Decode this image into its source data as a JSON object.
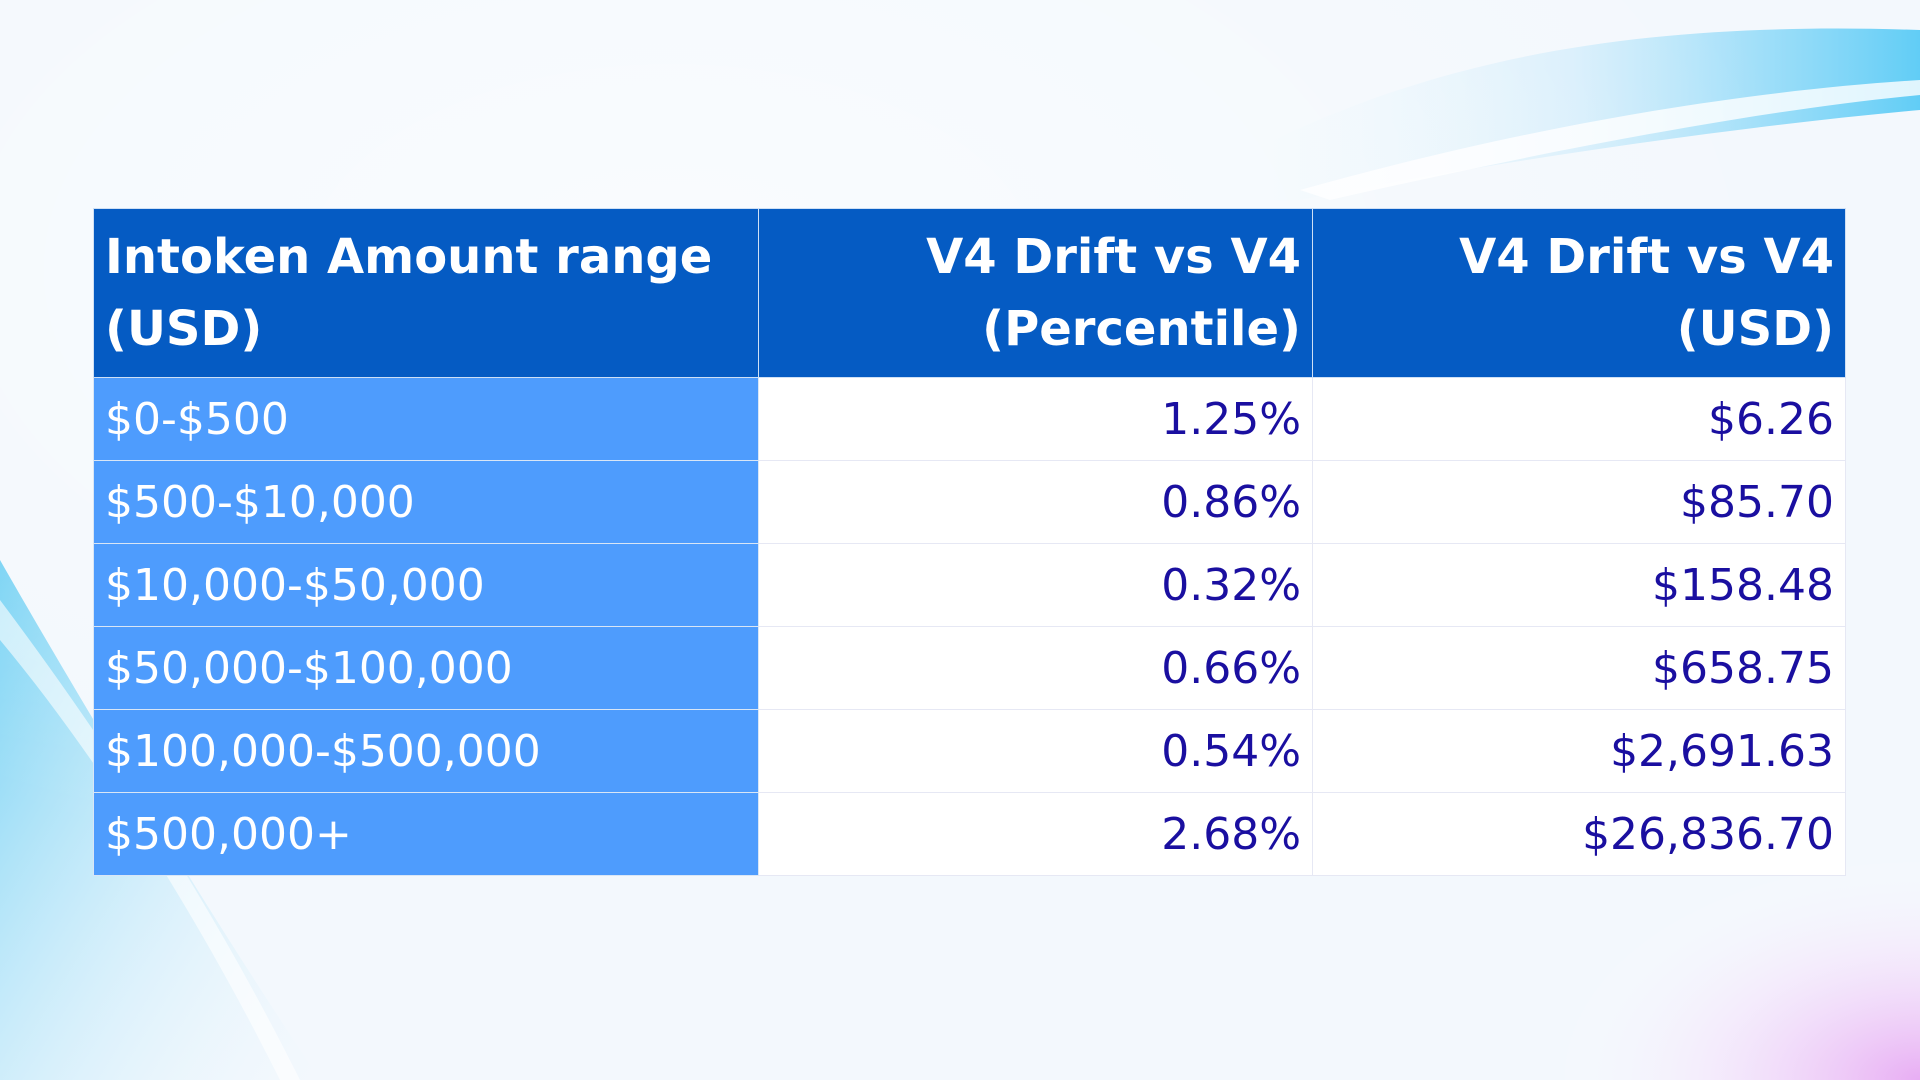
{
  "chart_data": {
    "type": "table",
    "columns": [
      "Intoken Amount range (USD)",
      "V4 Drift vs V4 (Percentile)",
      "V4 Drift vs V4 (USD)"
    ],
    "rows": [
      [
        "$0-$500",
        "1.25%",
        "$6.26"
      ],
      [
        "$500-$10,000",
        "0.86%",
        "$85.70"
      ],
      [
        "$10,000-$50,000",
        "0.32%",
        "$158.48"
      ],
      [
        "$50,000-$100,000",
        "0.66%",
        "$658.75"
      ],
      [
        "$100,000-$500,000",
        "0.54%",
        "$2,691.63"
      ],
      [
        "$500,000+",
        "2.68%",
        "$26,836.70"
      ]
    ],
    "colors": {
      "header_bg": "#055bc3",
      "range_bg": "#4e9cfd",
      "value_text": "#1a0fa0"
    }
  }
}
